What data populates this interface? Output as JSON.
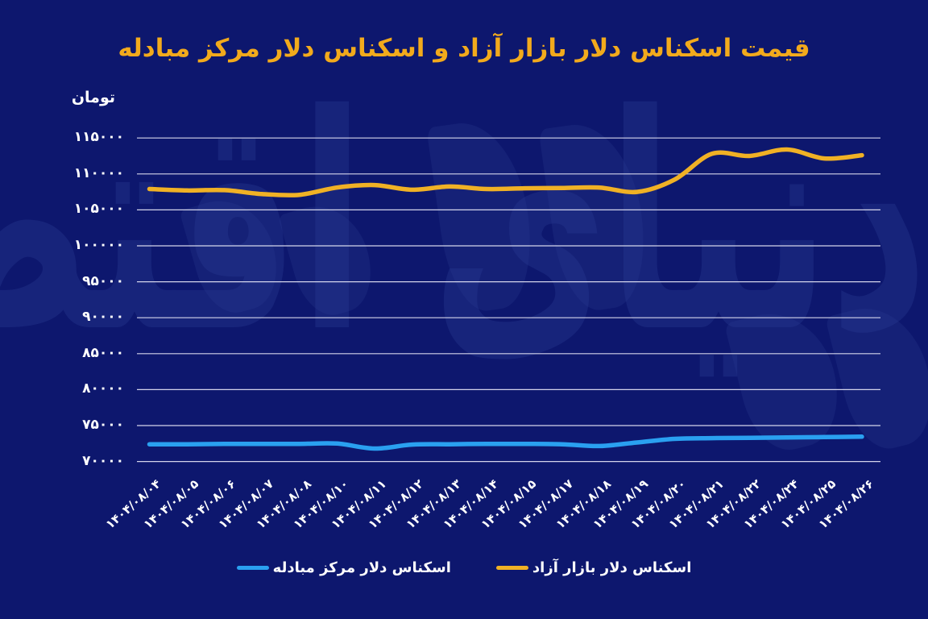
{
  "page": {
    "title": "قیمت اسکناس دلار بازار آزاد و اسکناس دلار مرکز مبادله",
    "y_unit_label": "تومان",
    "watermark_text": "دنیای اقتصاد"
  },
  "colors": {
    "background": "#0D176E",
    "title": "#F2AA1C",
    "axis_text": "#FFFFFF",
    "gridline": "#E9E9F7",
    "free_market_line": "#F0B125",
    "exchange_center_line": "#2AA0F0",
    "watermark": "#27388F"
  },
  "chart_data": {
    "type": "line",
    "title": "قیمت اسکناس دلار بازار آزاد و اسکناس دلار مرکز مبادله",
    "ylabel": "تومان",
    "xlabel": "",
    "grid": true,
    "legend_position": "bottom",
    "ylim": [
      70000,
      115000
    ],
    "ytick_step": 5000,
    "yticks": [
      {
        "value": 115000,
        "label": "۱۱۵۰۰۰"
      },
      {
        "value": 110000,
        "label": "۱۱۰۰۰۰"
      },
      {
        "value": 105000,
        "label": "۱۰۵۰۰۰"
      },
      {
        "value": 100000,
        "label": "۱۰۰۰۰۰"
      },
      {
        "value": 95000,
        "label": "۹۵۰۰۰"
      },
      {
        "value": 90000,
        "label": "۹۰۰۰۰"
      },
      {
        "value": 85000,
        "label": "۸۵۰۰۰"
      },
      {
        "value": 80000,
        "label": "۸۰۰۰۰"
      },
      {
        "value": 75000,
        "label": "۷۵۰۰۰"
      },
      {
        "value": 70000,
        "label": "۷۰۰۰۰"
      }
    ],
    "categories": [
      "۱۴۰۴/۰۸/۰۴",
      "۱۴۰۴/۰۸/۰۵",
      "۱۴۰۴/۰۸/۰۶",
      "۱۴۰۴/۰۸/۰۷",
      "۱۴۰۴/۰۸/۰۸",
      "۱۴۰۴/۰۸/۱۰",
      "۱۴۰۴/۰۸/۱۱",
      "۱۴۰۴/۰۸/۱۲",
      "۱۴۰۴/۰۸/۱۳",
      "۱۴۰۴/۰۸/۱۴",
      "۱۴۰۴/۰۸/۱۵",
      "۱۴۰۴/۰۸/۱۷",
      "۱۴۰۴/۰۸/۱۸",
      "۱۴۰۴/۰۸/۱۹",
      "۱۴۰۴/۰۸/۲۰",
      "۱۴۰۴/۰۸/۲۱",
      "۱۴۰۴/۰۸/۲۲",
      "۱۴۰۴/۰۸/۲۴",
      "۱۴۰۴/۰۸/۲۵",
      "۱۴۰۴/۰۸/۲۶"
    ],
    "series": [
      {
        "name": "اسکناس دلار بازار آزاد",
        "color": "#F0B125",
        "values": [
          107900,
          107700,
          107750,
          107200,
          107100,
          108100,
          108450,
          107800,
          108250,
          107900,
          108000,
          108050,
          108100,
          107500,
          109200,
          112800,
          112500,
          113400,
          112150,
          112600
        ]
      },
      {
        "name": "اسکناس دلار مرکز مبادله",
        "color": "#2AA0F0",
        "values": [
          72400,
          72400,
          72450,
          72450,
          72450,
          72500,
          71800,
          72350,
          72400,
          72450,
          72450,
          72400,
          72150,
          72650,
          73150,
          73250,
          73300,
          73350,
          73400,
          73450
        ]
      }
    ]
  }
}
